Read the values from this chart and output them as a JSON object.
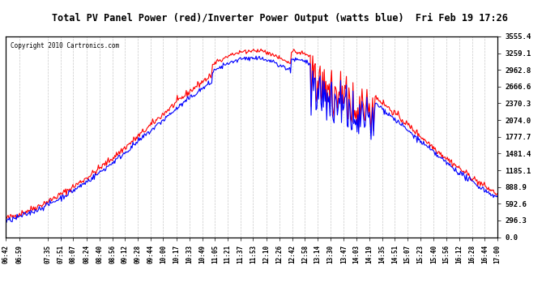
{
  "title": "Total PV Panel Power (red)/Inverter Power Output (watts blue)  Fri Feb 19 17:26",
  "copyright": "Copyright 2010 Cartronics.com",
  "y_max": 3555.4,
  "y_min": 0.0,
  "y_ticks": [
    0.0,
    296.3,
    592.6,
    888.9,
    1185.1,
    1481.4,
    1777.7,
    2074.0,
    2370.3,
    2666.6,
    2962.8,
    3259.1,
    3555.4
  ],
  "x_labels": [
    "06:42",
    "06:59",
    "07:35",
    "07:51",
    "08:07",
    "08:24",
    "08:40",
    "08:56",
    "09:12",
    "09:28",
    "09:44",
    "10:00",
    "10:17",
    "10:33",
    "10:49",
    "11:05",
    "11:21",
    "11:37",
    "11:53",
    "12:10",
    "12:26",
    "12:42",
    "12:58",
    "13:14",
    "13:30",
    "13:47",
    "14:03",
    "14:19",
    "14:35",
    "14:51",
    "15:07",
    "15:23",
    "15:40",
    "15:56",
    "16:12",
    "16:28",
    "16:44",
    "17:00"
  ],
  "bg_color": "#ffffff",
  "grid_color": "#bbbbbb",
  "red_color": "#ff0000",
  "blue_color": "#0000ff",
  "title_bg": "#d0d0d0"
}
